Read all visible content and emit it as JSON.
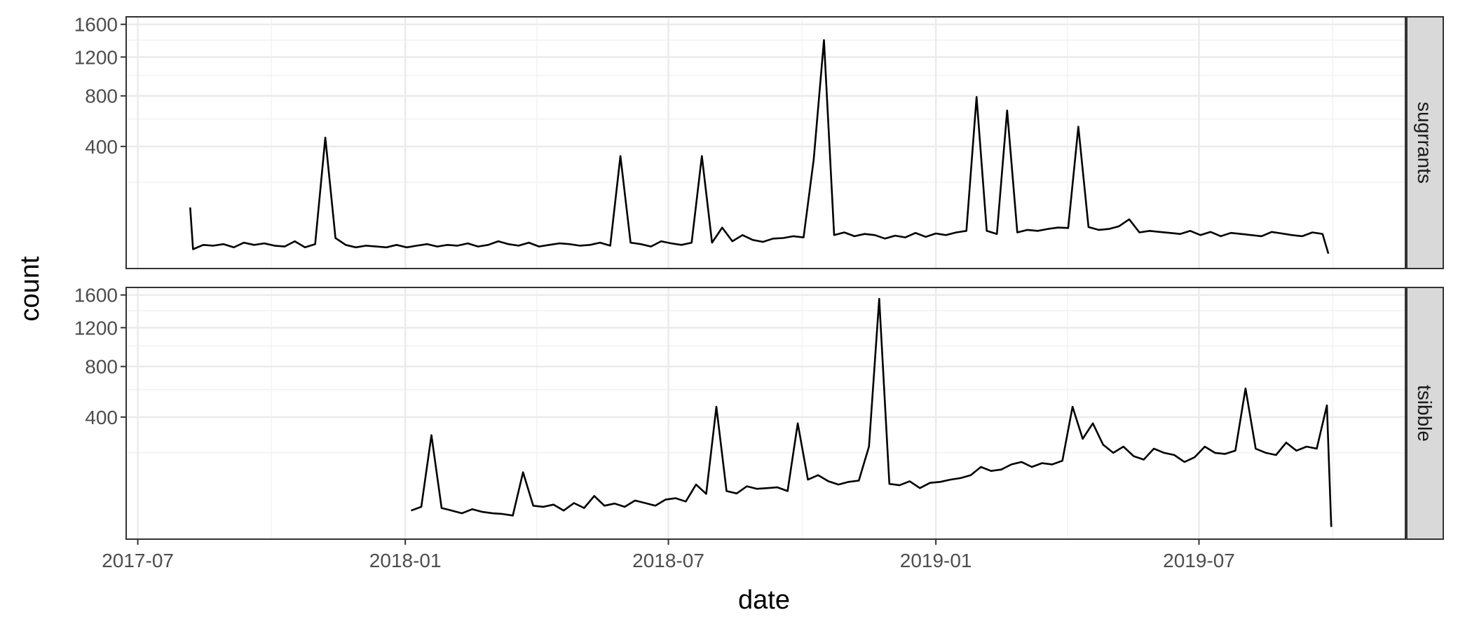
{
  "colors": {
    "line": "#000000",
    "panel_border": "#333333",
    "grid_major": "#ebebeb",
    "grid_minor": "#f2f2f2",
    "strip_fill": "#d9d9d9",
    "tick_text": "#4d4d4d"
  },
  "chart_data": {
    "type": "line",
    "facet": "rows",
    "xlabel": "date",
    "ylabel": "count",
    "y_scale": "sqrt",
    "xlim": [
      "2017-06-23",
      "2019-11-20"
    ],
    "ylim": [
      0,
      1700
    ],
    "x_ticks": [
      "2017-07",
      "2018-01",
      "2018-07",
      "2019-01",
      "2019-07"
    ],
    "y_ticks": [
      400,
      800,
      1200,
      1600
    ],
    "grid": true,
    "legend": "none",
    "panels": [
      {
        "strip_label": "sugrrants",
        "series": {
          "x": [
            "2017-08-06",
            "2017-08-08",
            "2017-08-15",
            "2017-08-22",
            "2017-08-29",
            "2017-09-05",
            "2017-09-12",
            "2017-09-19",
            "2017-09-26",
            "2017-10-03",
            "2017-10-10",
            "2017-10-17",
            "2017-10-24",
            "2017-10-31",
            "2017-11-07",
            "2017-11-14",
            "2017-11-21",
            "2017-11-28",
            "2017-12-05",
            "2017-12-12",
            "2017-12-19",
            "2017-12-26",
            "2018-01-02",
            "2018-01-09",
            "2018-01-16",
            "2018-01-23",
            "2018-01-30",
            "2018-02-06",
            "2018-02-13",
            "2018-02-20",
            "2018-02-27",
            "2018-03-06",
            "2018-03-13",
            "2018-03-20",
            "2018-03-27",
            "2018-04-03",
            "2018-04-10",
            "2018-04-17",
            "2018-04-24",
            "2018-05-01",
            "2018-05-08",
            "2018-05-15",
            "2018-05-22",
            "2018-05-29",
            "2018-06-05",
            "2018-06-12",
            "2018-06-19",
            "2018-06-26",
            "2018-07-03",
            "2018-07-10",
            "2018-07-17",
            "2018-07-24",
            "2018-07-31",
            "2018-08-07",
            "2018-08-14",
            "2018-08-21",
            "2018-08-28",
            "2018-09-04",
            "2018-09-11",
            "2018-09-18",
            "2018-09-25",
            "2018-10-02",
            "2018-10-09",
            "2018-10-16",
            "2018-10-23",
            "2018-10-30",
            "2018-11-06",
            "2018-11-13",
            "2018-11-20",
            "2018-11-27",
            "2018-12-04",
            "2018-12-11",
            "2018-12-18",
            "2018-12-25",
            "2019-01-01",
            "2019-01-08",
            "2019-01-15",
            "2019-01-22",
            "2019-01-29",
            "2019-02-05",
            "2019-02-12",
            "2019-02-19",
            "2019-02-26",
            "2019-03-05",
            "2019-03-12",
            "2019-03-19",
            "2019-03-26",
            "2019-04-02",
            "2019-04-09",
            "2019-04-16",
            "2019-04-23",
            "2019-04-30",
            "2019-05-07",
            "2019-05-14",
            "2019-05-21",
            "2019-05-28",
            "2019-06-04",
            "2019-06-11",
            "2019-06-18",
            "2019-06-25",
            "2019-07-02",
            "2019-07-09",
            "2019-07-16",
            "2019-07-23",
            "2019-07-30",
            "2019-08-06",
            "2019-08-13",
            "2019-08-20",
            "2019-08-27",
            "2019-09-03",
            "2019-09-10",
            "2019-09-17",
            "2019-09-24",
            "2019-09-28"
          ],
          "y": [
            100,
            10,
            15,
            14,
            16,
            12,
            18,
            15,
            17,
            14,
            13,
            20,
            12,
            16,
            460,
            25,
            15,
            12,
            14,
            13,
            12,
            15,
            12,
            14,
            16,
            13,
            15,
            14,
            17,
            13,
            15,
            20,
            16,
            14,
            18,
            13,
            15,
            17,
            16,
            14,
            15,
            18,
            14,
            340,
            18,
            16,
            13,
            20,
            17,
            15,
            18,
            340,
            18,
            45,
            20,
            30,
            22,
            19,
            24,
            25,
            28,
            26,
            320,
            1400,
            30,
            35,
            28,
            32,
            30,
            24,
            29,
            26,
            34,
            27,
            33,
            30,
            35,
            38,
            790,
            38,
            32,
            670,
            35,
            40,
            38,
            42,
            45,
            44,
            540,
            46,
            40,
            42,
            48,
            65,
            35,
            38,
            36,
            34,
            32,
            38,
            30,
            36,
            28,
            34,
            32,
            30,
            28,
            36,
            33,
            30,
            28,
            35,
            32,
            6
          ]
        }
      },
      {
        "strip_label": "tsibble",
        "series": {
          "x": [
            "2018-01-05",
            "2018-01-12",
            "2018-01-19",
            "2018-01-26",
            "2018-02-02",
            "2018-02-09",
            "2018-02-16",
            "2018-02-23",
            "2018-03-02",
            "2018-03-09",
            "2018-03-16",
            "2018-03-23",
            "2018-03-30",
            "2018-04-06",
            "2018-04-13",
            "2018-04-20",
            "2018-04-27",
            "2018-05-04",
            "2018-05-11",
            "2018-05-18",
            "2018-05-25",
            "2018-06-01",
            "2018-06-08",
            "2018-06-15",
            "2018-06-22",
            "2018-06-29",
            "2018-07-06",
            "2018-07-13",
            "2018-07-20",
            "2018-07-27",
            "2018-08-03",
            "2018-08-10",
            "2018-08-17",
            "2018-08-24",
            "2018-08-31",
            "2018-09-07",
            "2018-09-14",
            "2018-09-21",
            "2018-09-28",
            "2018-10-05",
            "2018-10-12",
            "2018-10-19",
            "2018-10-26",
            "2018-11-02",
            "2018-11-09",
            "2018-11-16",
            "2018-11-23",
            "2018-11-30",
            "2018-12-07",
            "2018-12-14",
            "2018-12-21",
            "2018-12-28",
            "2019-01-04",
            "2019-01-11",
            "2019-01-18",
            "2019-01-25",
            "2019-02-01",
            "2019-02-08",
            "2019-02-15",
            "2019-02-22",
            "2019-03-01",
            "2019-03-08",
            "2019-03-15",
            "2019-03-22",
            "2019-03-29",
            "2019-04-05",
            "2019-04-12",
            "2019-04-19",
            "2019-04-26",
            "2019-05-03",
            "2019-05-10",
            "2019-05-17",
            "2019-05-24",
            "2019-05-31",
            "2019-06-07",
            "2019-06-14",
            "2019-06-21",
            "2019-06-28",
            "2019-07-05",
            "2019-07-12",
            "2019-07-19",
            "2019-07-26",
            "2019-08-02",
            "2019-08-09",
            "2019-08-16",
            "2019-08-23",
            "2019-08-30",
            "2019-09-06",
            "2019-09-13",
            "2019-09-20",
            "2019-09-27",
            "2019-09-30"
          ],
          "y": [
            22,
            28,
            290,
            26,
            22,
            18,
            24,
            20,
            18,
            17,
            15,
            120,
            30,
            28,
            32,
            22,
            35,
            26,
            50,
            30,
            34,
            28,
            40,
            35,
            30,
            42,
            45,
            38,
            80,
            55,
            470,
            62,
            56,
            75,
            68,
            70,
            72,
            62,
            360,
            95,
            110,
            90,
            80,
            88,
            92,
            230,
            1550,
            82,
            78,
            90,
            70,
            85,
            88,
            95,
            100,
            110,
            140,
            125,
            130,
            150,
            160,
            140,
            155,
            150,
            165,
            470,
            270,
            360,
            240,
            200,
            230,
            185,
            170,
            220,
            200,
            190,
            160,
            180,
            230,
            200,
            195,
            210,
            610,
            220,
            200,
            190,
            250,
            210,
            230,
            220,
            480,
            4
          ]
        }
      }
    ]
  }
}
